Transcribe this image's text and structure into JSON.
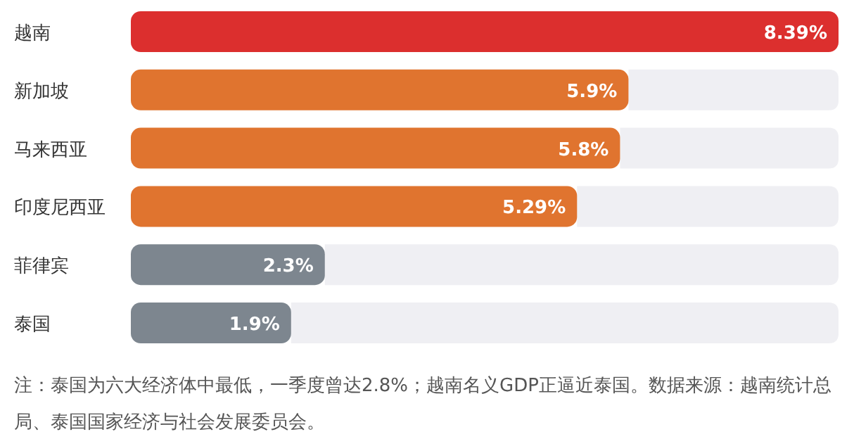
{
  "chart_data": {
    "type": "bar",
    "orientation": "horizontal",
    "categories": [
      "越南",
      "新加坡",
      "马来西亚",
      "印度尼西亚",
      "菲律宾",
      "泰国"
    ],
    "values": [
      8.39,
      5.9,
      5.8,
      5.29,
      2.3,
      1.9
    ],
    "value_labels": [
      "8.39%",
      "5.9%",
      "5.8%",
      "5.29%",
      "2.3%",
      "1.9%"
    ],
    "colors": [
      "#dc2f2e",
      "#e0742f",
      "#e0742f",
      "#e0742f",
      "#7d868f",
      "#7d868f"
    ],
    "annotations": [
      "注：泰国为六大经济体中最低，一季度曾达2.8%；越南名义GDP正逼近泰国。数据来源：越南统计总局、泰国国家经济与社会发展委员会。"
    ]
  }
}
